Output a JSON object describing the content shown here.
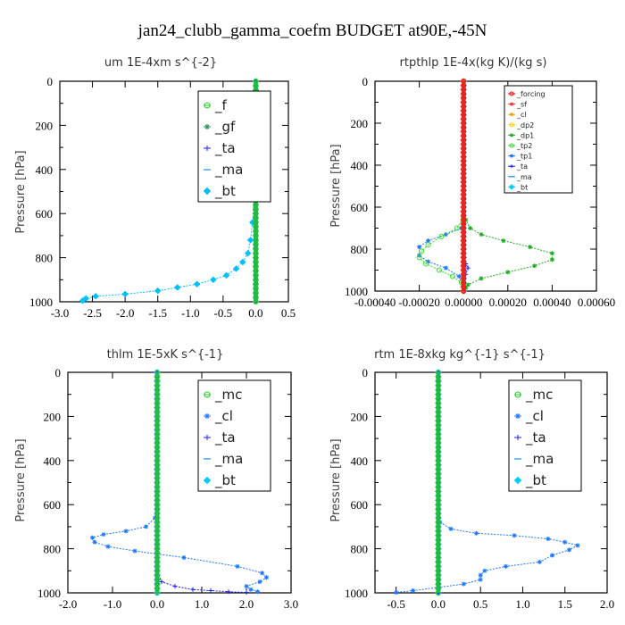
{
  "figure": {
    "title": "jan24_clubb_gamma_coefm  BUDGET at90E,-45N"
  },
  "chart_data": [
    {
      "type": "line",
      "title": "um   1E-4xm s^{-2}",
      "ylabel": "Pressure [hPa]",
      "xlim": [
        -3.0,
        0.5
      ],
      "ylim": [
        1000,
        0
      ],
      "xticks": [
        "-3.0",
        "-2.5",
        "-2.0",
        "-1.5",
        "-1.0",
        "-0.5",
        "0.0",
        "0.5"
      ],
      "yticks": [
        "0",
        "200",
        "400",
        "600",
        "800",
        "1000"
      ],
      "legend_position": "top-right",
      "series": [
        {
          "name": "_f",
          "color": "#22cc22",
          "marker": "circle",
          "x": [
            0,
            0,
            0,
            0,
            0,
            0,
            0,
            0,
            0,
            0,
            0
          ],
          "y": [
            0,
            100,
            200,
            300,
            400,
            500,
            600,
            700,
            800,
            900,
            1000
          ]
        },
        {
          "name": "_gf",
          "color": "#2e8b57",
          "marker": "star",
          "x": [
            0,
            0,
            0,
            0,
            0,
            0,
            0,
            0,
            0,
            0,
            0
          ],
          "y": [
            0,
            100,
            200,
            300,
            400,
            500,
            600,
            700,
            800,
            900,
            1000
          ]
        },
        {
          "name": "_ta",
          "color": "#1a1aff",
          "marker": "plus",
          "x": [
            0,
            0,
            0,
            0,
            0,
            0,
            0,
            0,
            0,
            0,
            0
          ],
          "y": [
            0,
            100,
            200,
            300,
            400,
            500,
            600,
            700,
            800,
            900,
            1000
          ]
        },
        {
          "name": "_ma",
          "color": "#1e90ff",
          "marker": "dash",
          "x": [
            0,
            0,
            0,
            0,
            0,
            0,
            0,
            0,
            0,
            0,
            0
          ],
          "y": [
            0,
            100,
            200,
            300,
            400,
            500,
            600,
            700,
            800,
            900,
            1000
          ]
        },
        {
          "name": "_bt",
          "color": "#00bfff",
          "marker": "diamond",
          "x": [
            0,
            -0.02,
            -0.05,
            -0.08,
            -0.12,
            -0.2,
            -0.3,
            -0.45,
            -0.65,
            -0.9,
            -1.2,
            -1.5,
            -2.0,
            -2.45,
            -2.6,
            -2.65
          ],
          "y": [
            0,
            500,
            640,
            720,
            780,
            820,
            850,
            880,
            900,
            920,
            935,
            950,
            965,
            975,
            985,
            995
          ]
        }
      ]
    },
    {
      "type": "line",
      "title": "rtpthlp   1E-4x(kg K)/(kg s)",
      "ylabel": "Pressure [hPa]",
      "xlim": [
        -0.0004,
        0.0006
      ],
      "ylim": [
        1000,
        0
      ],
      "xticks": [
        "-0.00040",
        "-0.00020",
        "0.00000",
        "0.00020",
        "0.00040",
        "0.00060"
      ],
      "yticks": [
        "0",
        "200",
        "400",
        "600",
        "800",
        "1000"
      ],
      "legend_position": "top-right",
      "series": [
        {
          "name": "_forcing",
          "color": "#ff0000",
          "marker": "circle",
          "x": [
            0,
            0,
            0,
            0,
            0,
            0,
            0,
            0,
            0,
            0,
            0
          ],
          "y": [
            0,
            100,
            200,
            300,
            400,
            500,
            600,
            700,
            800,
            900,
            1000
          ]
        },
        {
          "name": "_sf",
          "color": "#ff3030",
          "marker": "star",
          "x": [
            0,
            0,
            0,
            0,
            0,
            0,
            0,
            0,
            0,
            0,
            0
          ],
          "y": [
            0,
            100,
            200,
            300,
            400,
            500,
            600,
            700,
            800,
            900,
            1000
          ]
        },
        {
          "name": "_cl",
          "color": "#ff9900",
          "marker": "star",
          "x": [
            0,
            0,
            0,
            0,
            0,
            0,
            0,
            0,
            0,
            0,
            0
          ],
          "y": [
            0,
            100,
            200,
            300,
            400,
            500,
            600,
            700,
            800,
            900,
            1000
          ]
        },
        {
          "name": "_dp2",
          "color": "#ffcc00",
          "marker": "circle",
          "x": [
            0,
            0,
            0,
            0,
            0,
            0,
            0,
            0,
            0,
            0,
            0
          ],
          "y": [
            0,
            100,
            200,
            300,
            400,
            500,
            600,
            700,
            800,
            900,
            1000
          ]
        },
        {
          "name": "_dp1",
          "color": "#22aa22",
          "marker": "star",
          "x": [
            0,
            0,
            1e-05,
            3e-05,
            8e-05,
            0.00018,
            0.0003,
            0.0004,
            0.0004,
            0.00032,
            0.0002,
            8e-05,
            2e-05,
            1e-05,
            0
          ],
          "y": [
            0,
            600,
            660,
            700,
            730,
            760,
            790,
            820,
            850,
            880,
            910,
            940,
            970,
            985,
            1000
          ]
        },
        {
          "name": "_tp2",
          "color": "#33dd33",
          "marker": "circle",
          "x": [
            0,
            0,
            -3e-05,
            -0.0001,
            -0.00016,
            -0.00019,
            -0.0002,
            -0.00017,
            -0.00011,
            -5e-05,
            -1e-05,
            0
          ],
          "y": [
            0,
            650,
            700,
            740,
            780,
            810,
            840,
            870,
            900,
            930,
            960,
            1000
          ]
        },
        {
          "name": "_tp1",
          "color": "#1e78ff",
          "marker": "star",
          "x": [
            0,
            0,
            -1e-05,
            -8e-05,
            -0.00016,
            -0.0002,
            -0.0002,
            -0.00016,
            -8e-05,
            -2e-05,
            0
          ],
          "y": [
            0,
            650,
            700,
            730,
            760,
            790,
            830,
            860,
            890,
            930,
            1000
          ]
        },
        {
          "name": "_ta",
          "color": "#1a1aff",
          "marker": "plus",
          "x": [
            0,
            0,
            0,
            0,
            1e-05,
            2e-05,
            1e-05,
            0
          ],
          "y": [
            0,
            700,
            780,
            840,
            870,
            890,
            920,
            1000
          ]
        },
        {
          "name": "_ma",
          "color": "#1e90ff",
          "marker": "dash",
          "x": [
            0,
            0,
            0,
            0,
            0,
            0,
            0,
            0,
            0,
            0,
            0
          ],
          "y": [
            0,
            100,
            200,
            300,
            400,
            500,
            600,
            700,
            800,
            900,
            1000
          ]
        },
        {
          "name": "_bt",
          "color": "#00ccff",
          "marker": "diamond",
          "x": [
            0,
            0,
            0,
            0,
            0,
            0,
            0,
            0,
            0,
            0,
            0
          ],
          "y": [
            0,
            100,
            200,
            300,
            400,
            500,
            600,
            700,
            800,
            900,
            1000
          ]
        }
      ]
    },
    {
      "type": "line",
      "title": "thlm   1E-5xK s^{-1}",
      "ylabel": "Pressure [hPa]",
      "xlim": [
        -2.0,
        3.0
      ],
      "ylim": [
        1000,
        0
      ],
      "xticks": [
        "-2.0",
        "-1.0",
        "0.0",
        "1.0",
        "2.0",
        "3.0"
      ],
      "yticks": [
        "0",
        "200",
        "400",
        "600",
        "800",
        "1000"
      ],
      "legend_position": "top-right",
      "series": [
        {
          "name": "_mc",
          "color": "#22cc22",
          "marker": "circle",
          "x": [
            0,
            0,
            0,
            0,
            0,
            0,
            0,
            0,
            0,
            0,
            0
          ],
          "y": [
            0,
            100,
            200,
            300,
            400,
            500,
            600,
            700,
            800,
            900,
            1000
          ]
        },
        {
          "name": "_cl",
          "color": "#1e78ff",
          "marker": "star",
          "x": [
            0,
            0,
            -0.05,
            -0.25,
            -0.7,
            -1.2,
            -1.45,
            -1.4,
            -1.1,
            -0.5,
            0.6,
            1.8,
            2.35,
            2.45,
            2.3,
            2.0,
            2.1,
            2.25
          ],
          "y": [
            0,
            600,
            660,
            700,
            720,
            735,
            750,
            770,
            790,
            810,
            840,
            880,
            910,
            930,
            950,
            970,
            985,
            995
          ]
        },
        {
          "name": "_ta",
          "color": "#1a1aff",
          "marker": "plus",
          "x": [
            0,
            0,
            0,
            0,
            0.1,
            0.4,
            0.8,
            1.2,
            1.6,
            2.0
          ],
          "y": [
            0,
            600,
            800,
            900,
            950,
            970,
            985,
            990,
            995,
            998
          ]
        },
        {
          "name": "_ma",
          "color": "#1e90ff",
          "marker": "dash",
          "x": [
            0,
            0,
            0,
            0,
            0,
            0,
            0,
            0,
            0,
            0,
            0
          ],
          "y": [
            0,
            100,
            200,
            300,
            400,
            500,
            600,
            700,
            800,
            900,
            1000
          ]
        },
        {
          "name": "_bt",
          "color": "#00ccff",
          "marker": "diamond",
          "x": [
            0,
            0,
            0,
            0,
            0,
            0,
            0,
            0,
            0,
            0,
            0
          ],
          "y": [
            0,
            100,
            200,
            300,
            400,
            500,
            600,
            700,
            800,
            900,
            1000
          ]
        }
      ]
    },
    {
      "type": "line",
      "title": "rtm   1E-8xkg kg^{-1} s^{-1}",
      "ylabel": "Pressure [hPa]",
      "xlim": [
        -0.75,
        2.0
      ],
      "ylim": [
        1000,
        0
      ],
      "xticks": [
        "-0.5",
        "0.0",
        "0.5",
        "1.0",
        "1.5",
        "2.0"
      ],
      "yticks": [
        "0",
        "200",
        "400",
        "600",
        "800",
        "1000"
      ],
      "legend_position": "top-right",
      "series": [
        {
          "name": "_mc",
          "color": "#22cc22",
          "marker": "circle",
          "x": [
            0,
            0,
            0,
            0,
            0,
            0,
            0,
            0,
            0,
            0,
            0
          ],
          "y": [
            0,
            100,
            200,
            300,
            400,
            500,
            600,
            700,
            800,
            900,
            1000
          ]
        },
        {
          "name": "_cl",
          "color": "#1e78ff",
          "marker": "star",
          "x": [
            0,
            0,
            0.02,
            0.15,
            0.45,
            0.9,
            1.3,
            1.5,
            1.65,
            1.55,
            1.35,
            1.2,
            0.8,
            0.55,
            0.5,
            0.5,
            0.3,
            0.0,
            -0.3,
            -0.5
          ],
          "y": [
            0,
            640,
            680,
            710,
            730,
            740,
            755,
            770,
            785,
            805,
            830,
            860,
            880,
            900,
            920,
            940,
            960,
            975,
            990,
            998
          ]
        },
        {
          "name": "_ta",
          "color": "#1a1aff",
          "marker": "plus",
          "x": [
            0,
            0,
            0,
            0,
            0,
            0,
            0,
            0,
            0,
            0,
            0
          ],
          "y": [
            0,
            100,
            200,
            300,
            400,
            500,
            600,
            700,
            800,
            900,
            1000
          ]
        },
        {
          "name": "_ma",
          "color": "#1e90ff",
          "marker": "dash",
          "x": [
            0,
            0,
            0,
            0,
            0,
            0,
            0,
            0,
            0,
            0,
            0
          ],
          "y": [
            0,
            100,
            200,
            300,
            400,
            500,
            600,
            700,
            800,
            900,
            1000
          ]
        },
        {
          "name": "_bt",
          "color": "#00ccff",
          "marker": "diamond",
          "x": [
            0,
            0,
            0,
            0,
            0,
            0,
            0,
            0,
            0,
            0,
            0
          ],
          "y": [
            0,
            100,
            200,
            300,
            400,
            500,
            600,
            700,
            800,
            900,
            1000
          ]
        }
      ]
    }
  ]
}
